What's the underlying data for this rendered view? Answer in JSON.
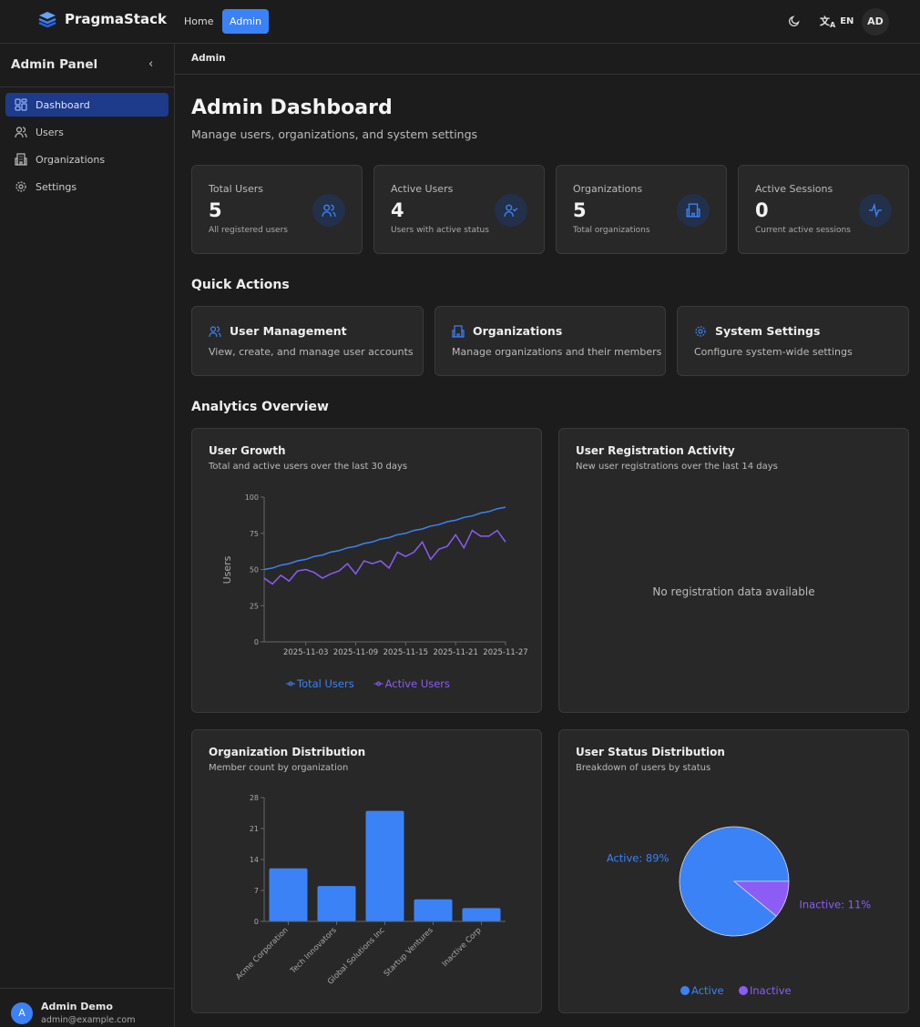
{
  "brand": "PragmaStack",
  "topnav": {
    "home": "Home",
    "admin": "Admin",
    "lang": "EN",
    "avatar": "AD"
  },
  "sidebar": {
    "title": "Admin Panel",
    "items": [
      {
        "label": "Dashboard"
      },
      {
        "label": "Users"
      },
      {
        "label": "Organizations"
      },
      {
        "label": "Settings"
      }
    ],
    "user": {
      "initial": "A",
      "name": "Admin Demo",
      "email": "admin@example.com"
    }
  },
  "breadcrumb": "Admin",
  "page": {
    "title": "Admin Dashboard",
    "subtitle": "Manage users, organizations, and system settings"
  },
  "stats": [
    {
      "label": "Total Users",
      "value": "5",
      "sub": "All registered users",
      "icon": "users-icon"
    },
    {
      "label": "Active Users",
      "value": "4",
      "sub": "Users with active status",
      "icon": "user-check-icon"
    },
    {
      "label": "Organizations",
      "value": "5",
      "sub": "Total organizations",
      "icon": "building-icon"
    },
    {
      "label": "Active Sessions",
      "value": "0",
      "sub": "Current active sessions",
      "icon": "activity-icon"
    }
  ],
  "quick_actions": {
    "title": "Quick Actions",
    "items": [
      {
        "title": "User Management",
        "desc": "View, create, and manage user accounts",
        "icon": "users-icon"
      },
      {
        "title": "Organizations",
        "desc": "Manage organizations and their members",
        "icon": "building-icon"
      },
      {
        "title": "System Settings",
        "desc": "Configure system-wide settings",
        "icon": "gear-icon"
      }
    ]
  },
  "analytics": {
    "title": "Analytics Overview",
    "growth": {
      "title": "User Growth",
      "subtitle": "Total and active users over the last 30 days"
    },
    "registration": {
      "title": "User Registration Activity",
      "subtitle": "New user registrations over the last 14 days",
      "empty": "No registration data available"
    },
    "orgs": {
      "title": "Organization Distribution",
      "subtitle": "Member count by organization"
    },
    "status": {
      "title": "User Status Distribution",
      "subtitle": "Breakdown of users by status"
    }
  },
  "colors": {
    "accent": "#3b82f6",
    "purple": "#8b5cf6"
  },
  "chart_data": [
    {
      "type": "line",
      "ylabel": "Users",
      "ylim": [
        0,
        100
      ],
      "yticks": [
        "0",
        "25",
        "50",
        "75",
        "100"
      ],
      "xticks": [
        "2025-11-03",
        "2025-11-09",
        "2025-11-15",
        "2025-11-21",
        "2025-11-27"
      ],
      "x_start": "2025-10-29",
      "x_end": "2025-11-27",
      "series": [
        {
          "name": "Total Users",
          "color": "#3b82f6",
          "values": [
            50,
            51,
            53,
            54,
            56,
            57,
            59,
            60,
            62,
            63,
            65,
            66,
            68,
            69,
            71,
            72,
            74,
            75,
            77,
            78,
            80,
            81,
            83,
            84,
            86,
            87,
            89,
            90,
            92,
            93
          ]
        },
        {
          "name": "Active Users",
          "color": "#8b5cf6",
          "values": [
            44,
            40,
            46,
            42,
            49,
            50,
            48,
            44,
            47,
            49,
            54,
            47,
            56,
            54,
            56,
            51,
            62,
            59,
            62,
            69,
            57,
            64,
            66,
            74,
            65,
            77,
            73,
            73,
            77,
            69
          ]
        }
      ],
      "legend": "bottom"
    },
    {
      "type": "bar",
      "categories": [
        "Acme Corporation",
        "Tech Innovators",
        "Global Solutions Inc",
        "Startup Ventures",
        "Inactive Corp"
      ],
      "values": [
        12,
        8,
        25,
        5,
        3
      ],
      "ylim": [
        0,
        28
      ],
      "yticks": [
        "0",
        "7",
        "14",
        "21",
        "28"
      ],
      "color": "#3b82f6"
    },
    {
      "type": "pie",
      "slices": [
        {
          "name": "Active",
          "value": 89,
          "label": "Active: 89%",
          "color": "#3b82f6"
        },
        {
          "name": "Inactive",
          "value": 11,
          "label": "Inactive: 11%",
          "color": "#8b5cf6"
        }
      ],
      "legend": "bottom"
    }
  ]
}
